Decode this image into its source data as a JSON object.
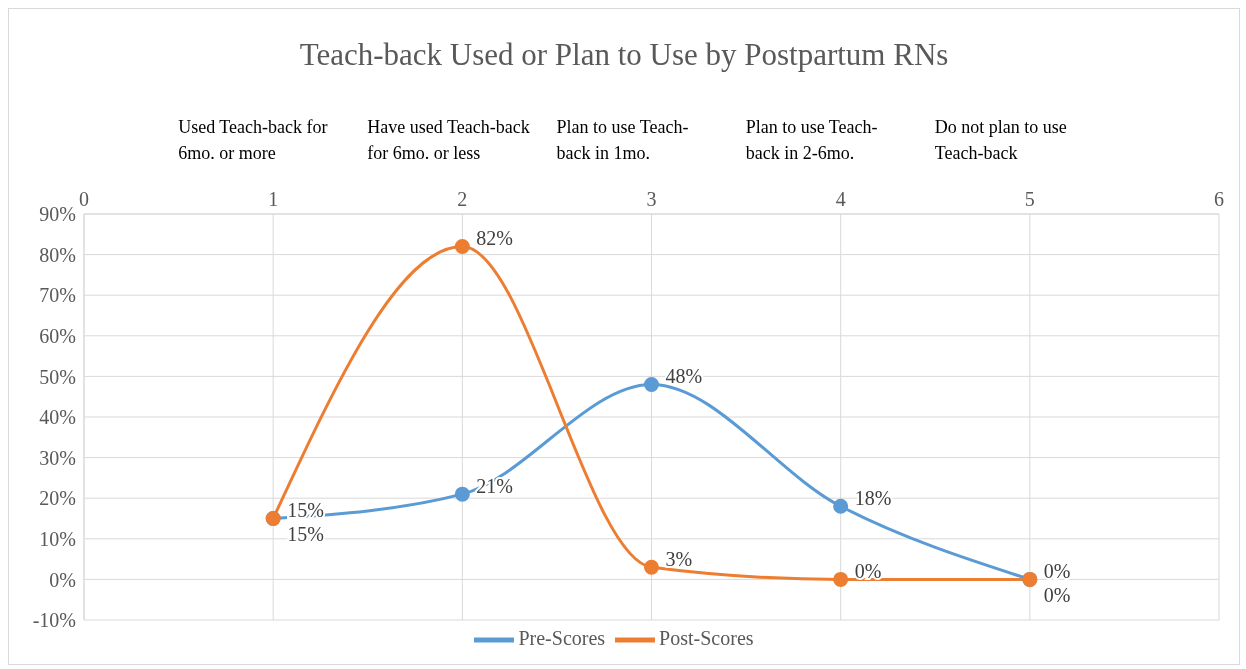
{
  "chart_data": {
    "type": "line",
    "title": "Teach-back Used or Plan to Use by Postpartum RNs",
    "x": [
      1,
      2,
      3,
      4,
      5
    ],
    "xlim": [
      0,
      6
    ],
    "xticks": [
      0,
      1,
      2,
      3,
      4,
      5,
      6
    ],
    "ylim": [
      -10,
      90
    ],
    "yticks": [
      {
        "value": -10,
        "label": "-10%"
      },
      {
        "value": 0,
        "label": "0%"
      },
      {
        "value": 10,
        "label": "10%"
      },
      {
        "value": 20,
        "label": "20%"
      },
      {
        "value": 30,
        "label": "30%"
      },
      {
        "value": 40,
        "label": "40%"
      },
      {
        "value": 50,
        "label": "50%"
      },
      {
        "value": 60,
        "label": "60%"
      },
      {
        "value": 70,
        "label": "70%"
      },
      {
        "value": 80,
        "label": "80%"
      },
      {
        "value": 90,
        "label": "90%"
      }
    ],
    "series": [
      {
        "name": "Pre-Scores",
        "color": "#5b9bd5",
        "values": [
          15,
          21,
          48,
          18,
          0
        ],
        "value_labels": [
          "15%",
          "21%",
          "48%",
          "18%",
          "0%"
        ]
      },
      {
        "name": "Post-Scores",
        "color": "#ed7d31",
        "values": [
          15,
          82,
          3,
          0,
          0
        ],
        "value_labels": [
          "15%",
          "82%",
          "3%",
          "0%",
          "0%"
        ]
      }
    ],
    "annotations": [
      "Used Teach-back for 6mo. or more",
      "Have used Teach-back for 6mo. or less",
      "Plan to use Teach-back in 1mo.",
      "Plan to use Teach-back in 2-6mo.",
      "Do not plan to use Teach-back"
    ],
    "grid": true,
    "legend": "bottom",
    "marker": "circle",
    "line_style": "solid"
  }
}
